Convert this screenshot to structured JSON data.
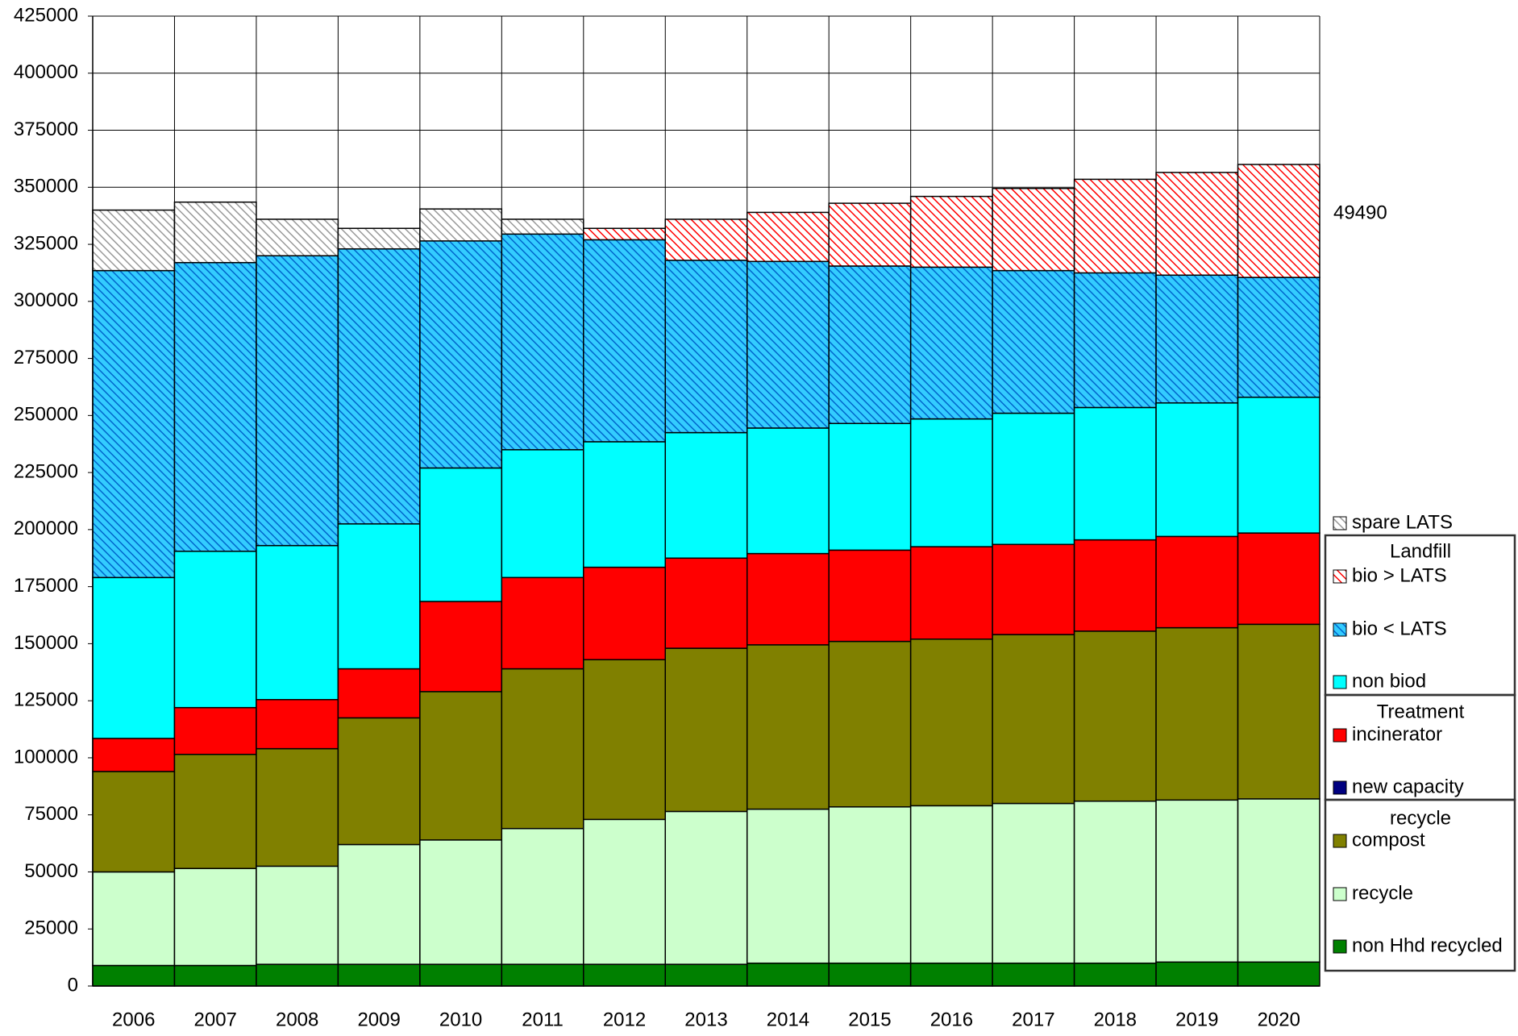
{
  "chart_data": {
    "type": "stacked_bar",
    "categories": [
      "2006",
      "2007",
      "2008",
      "2009",
      "2010",
      "2011",
      "2012",
      "2013",
      "2014",
      "2015",
      "2016",
      "2017",
      "2018",
      "2019",
      "2020"
    ],
    "series": [
      {
        "name": "non Hhd recycled",
        "color": "#008000",
        "values": [
          9000,
          9000,
          9500,
          9500,
          9500,
          9500,
          9500,
          9500,
          10000,
          10000,
          10000,
          10000,
          10000,
          10500,
          10500
        ]
      },
      {
        "name": "recycle",
        "color": "#ccffcc",
        "values": [
          41000,
          42500,
          43000,
          52500,
          54500,
          59500,
          63500,
          67000,
          67500,
          68500,
          69000,
          70000,
          71000,
          71000,
          71500
        ]
      },
      {
        "name": "compost",
        "color": "#808000",
        "values": [
          44000,
          50000,
          51500,
          55500,
          65000,
          70000,
          70000,
          71500,
          72000,
          72500,
          73000,
          74000,
          74500,
          75500,
          76500
        ]
      },
      {
        "name": "new capacity",
        "color": "#000080",
        "values": [
          0,
          0,
          0,
          0,
          0,
          0,
          0,
          0,
          0,
          0,
          0,
          0,
          0,
          0,
          0
        ]
      },
      {
        "name": "incinerator",
        "color": "#ff0000",
        "values": [
          14500,
          20500,
          21500,
          21500,
          39500,
          40000,
          40500,
          39500,
          40000,
          40000,
          40500,
          39500,
          40000,
          40000,
          40000
        ]
      },
      {
        "name": "non biod",
        "color": "#00ffff",
        "values": [
          70500,
          68500,
          67500,
          63500,
          58500,
          56000,
          55000,
          55000,
          55000,
          55500,
          56000,
          57500,
          58000,
          58500,
          59500
        ]
      },
      {
        "name": "bio < LATS",
        "color": "#33ccff",
        "hatch": "#0066cc",
        "values": [
          134500,
          126500,
          127000,
          120500,
          99500,
          94500,
          88500,
          75500,
          73000,
          69000,
          66500,
          62500,
          59000,
          56000,
          52500
        ]
      },
      {
        "name": "bio > LATS",
        "color": "#ffffff",
        "hatch": "#ff0000",
        "values": [
          0,
          0,
          0,
          0,
          0,
          0,
          5000,
          18000,
          21500,
          27500,
          31000,
          36000,
          41000,
          45000,
          49500
        ]
      },
      {
        "name": "spare LATS",
        "color": "#ffffff",
        "hatch": "#999999",
        "values": [
          26500,
          26500,
          16000,
          9000,
          14000,
          6500,
          0,
          0,
          0,
          0,
          0,
          0,
          0,
          0,
          0
        ]
      }
    ],
    "legend_group_titles": [
      "Landfill",
      "Treatment",
      "recycle"
    ],
    "annotation": "49490",
    "ylim": [
      0,
      425000
    ],
    "yticks": [
      0,
      25000,
      50000,
      75000,
      100000,
      125000,
      150000,
      175000,
      200000,
      225000,
      250000,
      275000,
      300000,
      325000,
      350000,
      375000,
      400000,
      425000
    ],
    "grid": true
  }
}
